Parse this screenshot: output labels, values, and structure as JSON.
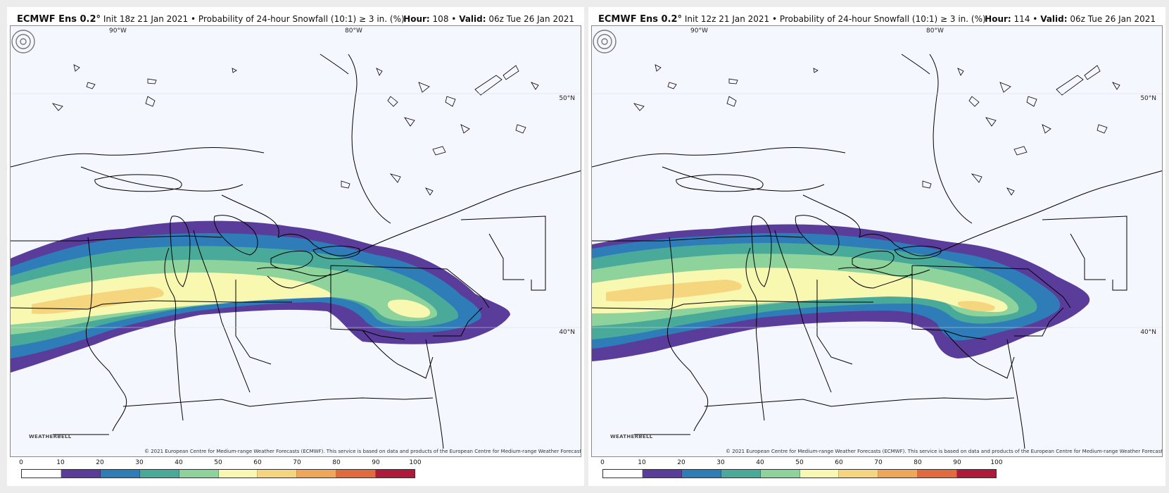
{
  "panels": [
    {
      "model": "ECMWF Ens 0.2°",
      "init": "Init 18z 21 Jan 2021",
      "product": "Probability of 24-hour Snowfall (10:1) ≥ 3 in. (%)",
      "hour_label": "Hour:",
      "hour": "108",
      "valid_label": "Valid:",
      "valid": "06z Tue 26 Jan 2021"
    },
    {
      "model": "ECMWF Ens 0.2°",
      "init": "Init 12z 21 Jan 2021",
      "product": "Probability of 24-hour Snowfall (10:1) ≥ 3 in. (%)",
      "hour_label": "Hour:",
      "hour": "114",
      "valid_label": "Valid:",
      "valid": "06z Tue 26 Jan 2021"
    }
  ],
  "axis_labels": {
    "lon_90": "90°W",
    "lon_80": "80°W",
    "lat_50": "50°N",
    "lat_40": "40°N"
  },
  "bullet": "•",
  "credit": "© 2021 European Centre for Medium-range Weather Forecasts (ECMWF). This service is based on data and products of the European Centre for Medium-range Weather Forecasts (ECMWF).",
  "logo_text": "WEATHERBELL",
  "colorbar": {
    "ticks": [
      "0",
      "10",
      "20",
      "30",
      "40",
      "50",
      "60",
      "70",
      "80",
      "90",
      "100"
    ],
    "colors": [
      "#ffffff",
      "#5a3d9a",
      "#2e7db8",
      "#4aaa9a",
      "#8fd39c",
      "#f8f8b0",
      "#f5d57d",
      "#f0a75a",
      "#e36a3c",
      "#b01a3a"
    ]
  },
  "map_colors": {
    "background": "#f4f7fd",
    "border": "#000000"
  }
}
